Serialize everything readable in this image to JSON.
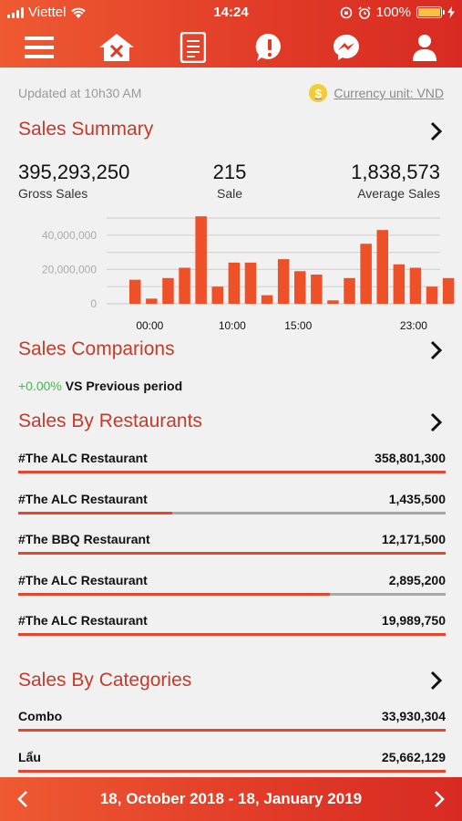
{
  "status": {
    "carrier": "Viettel",
    "time": "14:24",
    "battery": "100%",
    "battery_level": 1.0
  },
  "nav": {
    "icons": [
      "menu-icon",
      "restaurant-home-icon",
      "report-icon",
      "alert-icon",
      "messenger-icon",
      "user-icon"
    ]
  },
  "header": {
    "updated": "Updated at 10h30 AM",
    "currency_symbol": "$",
    "currency": "Currency unit: VND"
  },
  "summary": {
    "title": "Sales Summary",
    "gross_value": "395,293,250",
    "gross_label": "Gross Sales",
    "sale_value": "215",
    "sale_label": "Sale",
    "avg_value": "1,838,573",
    "avg_label": "Average Sales"
  },
  "chart_data": {
    "type": "bar",
    "y_ticks": [
      "40,000,000",
      "20,000,000",
      "0"
    ],
    "x_ticks": [
      {
        "label": "00:00",
        "index": 1
      },
      {
        "label": "10:00",
        "index": 6
      },
      {
        "label": "15:00",
        "index": 10
      },
      {
        "label": "23:00",
        "index": 17
      }
    ],
    "ylim": [
      0,
      50000000
    ],
    "bar_color": "#ee5128",
    "values": [
      14000000,
      3000000,
      15000000,
      21000000,
      51000000,
      10000000,
      24000000,
      24000000,
      5000000,
      26000000,
      19000000,
      17000000,
      2000000,
      15000000,
      35000000,
      43000000,
      23000000,
      21000000,
      10000000,
      15000000
    ]
  },
  "comparisons": {
    "title": "Sales Comparions",
    "pct": "+0.00%",
    "vs": " VS Previous period"
  },
  "restaurants": {
    "title": "Sales By Restaurants",
    "items": [
      {
        "name": "#The ALC Restaurant",
        "amount": "358,801,300",
        "share": 1.0
      },
      {
        "name": "#The ALC Restaurant",
        "amount": "1,435,500",
        "share": 0.36
      },
      {
        "name": "#The BBQ Restaurant",
        "amount": "12,171,500",
        "share": 1.0
      },
      {
        "name": "#The ALC Restaurant",
        "amount": "2,895,200",
        "share": 0.73
      },
      {
        "name": "#The ALC Restaurant",
        "amount": "19,989,750",
        "share": 1.0
      }
    ]
  },
  "categories": {
    "title": "Sales By Categories",
    "items": [
      {
        "name": "Combo",
        "amount": "33,930,304",
        "share": 1.0
      },
      {
        "name": "Lẩu",
        "amount": "25,662,129",
        "share": 1.0
      }
    ]
  },
  "footer": {
    "range": "18, October 2018 - 18, January 2019"
  },
  "colors": {
    "accent": "#e03a27",
    "title_red": "#c63a2a",
    "positive": "#3bbf46",
    "bar": "#ee5128"
  }
}
